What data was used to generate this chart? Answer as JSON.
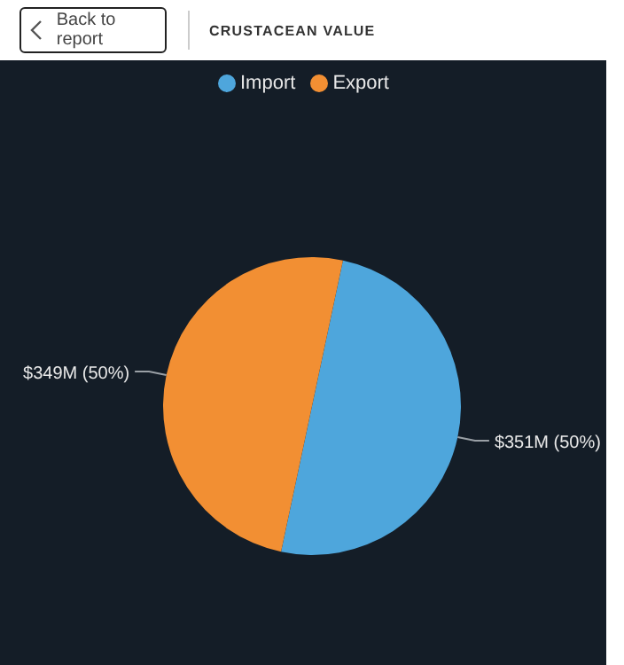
{
  "chart_data": {
    "type": "pie",
    "title": "CRUSTACEAN VALUE",
    "annotations": [
      "Back to report"
    ],
    "categories": [
      "Import",
      "Export"
    ],
    "values": [
      50,
      50
    ],
    "colors": [
      "#4ea6dc",
      "#f28f33"
    ],
    "value_labels": [
      "$351M (50%)",
      "$349M (50%)"
    ],
    "legend": "top"
  }
}
